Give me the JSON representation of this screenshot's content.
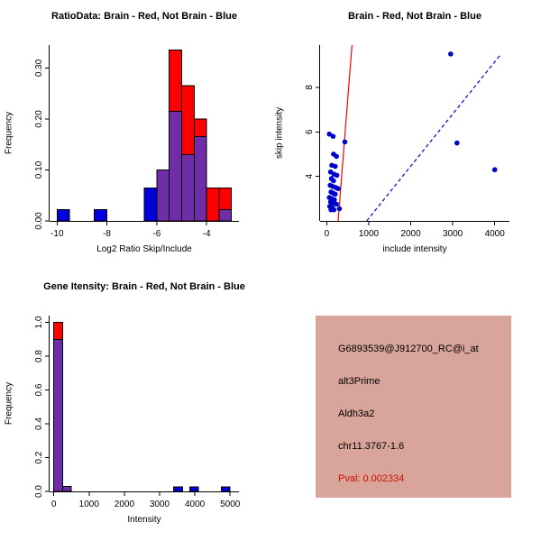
{
  "colors": {
    "red": "#ff0000",
    "blue": "#0000dd",
    "overlap": "#6f2da8",
    "point": "#0000cd",
    "axis": "#000000",
    "pval_red": "#cc1100",
    "info_bg": "#d9a59b"
  },
  "chart_data": [
    {
      "id": "ratio-histogram",
      "type": "histogram",
      "title": "RatioData: Brain - Red, Not Brain - Blue",
      "xlabel": "Log2 Ratio Skip/Include",
      "ylabel": "Frequency",
      "xlim": [
        -10.3,
        -2.7
      ],
      "ylim": [
        0,
        0.345
      ],
      "xticks": [
        {
          "v": -10,
          "label": "-10"
        },
        {
          "v": -8,
          "label": "-8"
        },
        {
          "v": -6,
          "label": "-6"
        },
        {
          "v": -4,
          "label": "-4"
        }
      ],
      "yticks": [
        {
          "v": 0,
          "label": "0.00"
        },
        {
          "v": 0.1,
          "label": "0.10"
        },
        {
          "v": 0.2,
          "label": "0.20"
        },
        {
          "v": 0.3,
          "label": "0.30"
        }
      ],
      "bin_width": 0.5,
      "bars": [
        {
          "x": -10.0,
          "red": 0,
          "blue": 0.022
        },
        {
          "x": -8.5,
          "red": 0,
          "blue": 0.022
        },
        {
          "x": -6.5,
          "red": 0,
          "blue": 0.065
        },
        {
          "x": -6.0,
          "red": 0.1,
          "blue": 0.1
        },
        {
          "x": -5.5,
          "red": 0.335,
          "blue": 0.215
        },
        {
          "x": -5.0,
          "red": 0.265,
          "blue": 0.13
        },
        {
          "x": -4.5,
          "red": 0.2,
          "blue": 0.165
        },
        {
          "x": -4.0,
          "red": 0.065,
          "blue": 0
        },
        {
          "x": -3.5,
          "red": 0.065,
          "blue": 0.022
        }
      ]
    },
    {
      "id": "intensity-scatter",
      "type": "scatter",
      "title": "Brain - Red, Not Brain - Blue",
      "xlabel": "include intensity",
      "ylabel": "skip intensity",
      "xlim": [
        -160,
        4350
      ],
      "ylim": [
        2.0,
        9.9
      ],
      "xticks": [
        {
          "v": 0,
          "label": "0"
        },
        {
          "v": 1000,
          "label": "1000"
        },
        {
          "v": 2000,
          "label": "2000"
        },
        {
          "v": 3000,
          "label": "3000"
        },
        {
          "v": 4000,
          "label": "4000"
        }
      ],
      "yticks": [
        {
          "v": 4,
          "label": "4"
        },
        {
          "v": 6,
          "label": "6"
        },
        {
          "v": 8,
          "label": "8"
        }
      ],
      "points": [
        [
          60,
          5.9
        ],
        [
          150,
          5.8
        ],
        [
          430,
          5.55
        ],
        [
          160,
          5.0
        ],
        [
          230,
          4.9
        ],
        [
          120,
          4.5
        ],
        [
          200,
          4.45
        ],
        [
          90,
          4.2
        ],
        [
          170,
          4.1
        ],
        [
          240,
          4.05
        ],
        [
          110,
          3.9
        ],
        [
          160,
          3.8
        ],
        [
          80,
          3.6
        ],
        [
          140,
          3.55
        ],
        [
          210,
          3.5
        ],
        [
          270,
          3.45
        ],
        [
          100,
          3.3
        ],
        [
          150,
          3.25
        ],
        [
          200,
          3.2
        ],
        [
          60,
          3.05
        ],
        [
          120,
          3.0
        ],
        [
          180,
          2.95
        ],
        [
          90,
          2.85
        ],
        [
          140,
          2.8
        ],
        [
          230,
          2.75
        ],
        [
          70,
          2.65
        ],
        [
          130,
          2.6
        ],
        [
          300,
          2.55
        ],
        [
          100,
          2.5
        ],
        [
          170,
          2.5
        ],
        [
          2950,
          9.5
        ],
        [
          3100,
          5.5
        ],
        [
          4000,
          4.3
        ]
      ],
      "lines": [
        {
          "color": "red",
          "style": "solid",
          "from": [
            270,
            2.0
          ],
          "to": [
            600,
            9.9
          ]
        },
        {
          "color": "blue",
          "style": "dashed",
          "from": [
            950,
            2.0
          ],
          "to": [
            4150,
            9.5
          ]
        }
      ]
    },
    {
      "id": "gene-intensity-histogram",
      "type": "histogram",
      "title": "Gene Itensity: Brain - Red, Not Brain - Blue",
      "xlabel": "Intensity",
      "ylabel": "Frequency",
      "xlim": [
        -120,
        5250
      ],
      "ylim": [
        0,
        1.04
      ],
      "xticks": [
        {
          "v": 0,
          "label": "0"
        },
        {
          "v": 1000,
          "label": "1000"
        },
        {
          "v": 2000,
          "label": "2000"
        },
        {
          "v": 3000,
          "label": "3000"
        },
        {
          "v": 4000,
          "label": "4000"
        },
        {
          "v": 5000,
          "label": "5000"
        }
      ],
      "yticks": [
        {
          "v": 0,
          "label": "0.0"
        },
        {
          "v": 0.2,
          "label": "0.2"
        },
        {
          "v": 0.4,
          "label": "0.4"
        },
        {
          "v": 0.6,
          "label": "0.6"
        },
        {
          "v": 0.8,
          "label": "0.8"
        },
        {
          "v": 1,
          "label": "1.0"
        }
      ],
      "bin_width": 250,
      "bars": [
        {
          "x": 0,
          "red": 1.0,
          "blue": 0.9
        },
        {
          "x": 250,
          "red": 0.03,
          "blue": 0.03
        },
        {
          "x": 3400,
          "red": 0,
          "blue": 0.028
        },
        {
          "x": 3850,
          "red": 0,
          "blue": 0.028
        },
        {
          "x": 4750,
          "red": 0,
          "blue": 0.028
        }
      ]
    }
  ],
  "info_panel": {
    "bg": "#d9a59b",
    "lines": [
      {
        "text": "G6893539@J912700_RC@i_at",
        "color": "#000000"
      },
      {
        "text": "alt3Prime",
        "color": "#000000"
      },
      {
        "text": "Aldh3a2",
        "color": "#000000"
      },
      {
        "text": "chr11.3767-1.6",
        "color": "#000000"
      },
      {
        "text": "Pval: 0.002334",
        "color": "#cc1100"
      }
    ]
  }
}
